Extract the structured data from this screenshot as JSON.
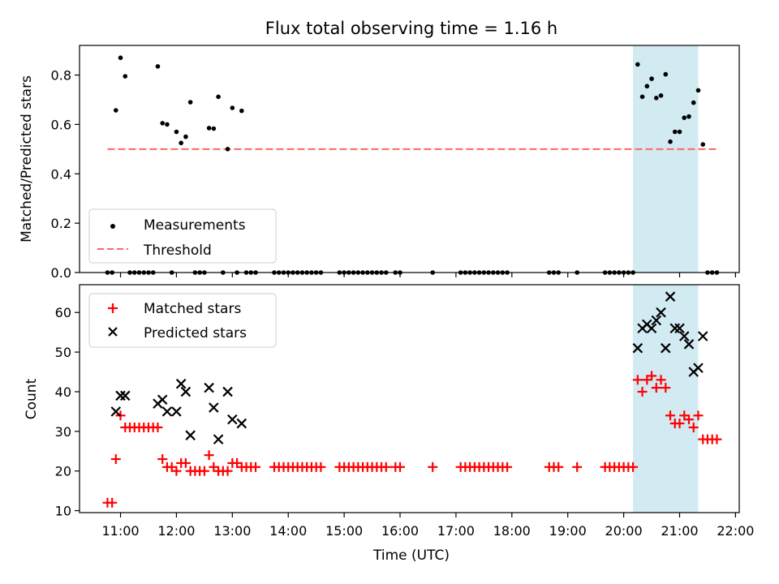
{
  "chart_data": {
    "type": "scatter",
    "title": "Flux total observing time = 1.16 h",
    "xlabel": "Time (UTC)",
    "x_ticks": [
      "11:00",
      "12:00",
      "13:00",
      "14:00",
      "15:00",
      "16:00",
      "17:00",
      "18:00",
      "19:00",
      "20:00",
      "21:00",
      "22:00"
    ],
    "xlim": [
      "10:16",
      "22:04"
    ],
    "highlight_span": [
      "20:10",
      "21:20"
    ],
    "colors": {
      "highlight": "#add8e6",
      "threshold": "#ff6666",
      "matched": "#ff0000",
      "predicted": "#000000",
      "measurements": "#000000"
    },
    "panels": [
      {
        "ylabel": "Matched/Predicted stars",
        "ylim": [
          0,
          0.92
        ],
        "y_ticks": [
          0.0,
          0.2,
          0.4,
          0.6,
          0.8
        ],
        "y_tick_labels": [
          "0.0",
          "0.2",
          "0.4",
          "0.6",
          "0.8"
        ],
        "legend_position": "lower-left",
        "series": [
          {
            "name": "Measurements",
            "marker": "dot",
            "points": [
              [
                "10:46",
                0
              ],
              [
                "10:51",
                0
              ],
              [
                "10:55",
                0.657
              ],
              [
                "11:00",
                0.87
              ],
              [
                "11:05",
                0.795
              ],
              [
                "11:10",
                0
              ],
              [
                "11:15",
                0
              ],
              [
                "11:20",
                0
              ],
              [
                "11:25",
                0
              ],
              [
                "11:30",
                0
              ],
              [
                "11:35",
                0
              ],
              [
                "11:40",
                0.835
              ],
              [
                "11:45",
                0.605
              ],
              [
                "11:50",
                0.6
              ],
              [
                "11:55",
                0
              ],
              [
                "12:00",
                0.57
              ],
              [
                "12:05",
                0.525
              ],
              [
                "12:10",
                0.55
              ],
              [
                "12:15",
                0.69
              ],
              [
                "12:20",
                0
              ],
              [
                "12:25",
                0
              ],
              [
                "12:30",
                0
              ],
              [
                "12:35",
                0.585
              ],
              [
                "12:40",
                0.583
              ],
              [
                "12:45",
                0.712
              ],
              [
                "12:50",
                0
              ],
              [
                "12:55",
                0.5
              ],
              [
                "13:00",
                0.667
              ],
              [
                "13:05",
                0
              ],
              [
                "13:10",
                0.655
              ],
              [
                "13:15",
                0
              ],
              [
                "13:20",
                0
              ],
              [
                "13:25",
                0
              ],
              [
                "13:45",
                0
              ],
              [
                "13:50",
                0
              ],
              [
                "13:55",
                0
              ],
              [
                "14:00",
                0
              ],
              [
                "14:05",
                0
              ],
              [
                "14:10",
                0
              ],
              [
                "14:15",
                0
              ],
              [
                "14:20",
                0
              ],
              [
                "14:25",
                0
              ],
              [
                "14:30",
                0
              ],
              [
                "14:35",
                0
              ],
              [
                "14:55",
                0
              ],
              [
                "15:00",
                0
              ],
              [
                "15:05",
                0
              ],
              [
                "15:10",
                0
              ],
              [
                "15:15",
                0
              ],
              [
                "15:20",
                0
              ],
              [
                "15:25",
                0
              ],
              [
                "15:30",
                0
              ],
              [
                "15:35",
                0
              ],
              [
                "15:40",
                0
              ],
              [
                "15:45",
                0
              ],
              [
                "15:55",
                0
              ],
              [
                "16:00",
                0
              ],
              [
                "16:35",
                0
              ],
              [
                "17:05",
                0
              ],
              [
                "17:10",
                0
              ],
              [
                "17:15",
                0
              ],
              [
                "17:20",
                0
              ],
              [
                "17:25",
                0
              ],
              [
                "17:30",
                0
              ],
              [
                "17:35",
                0
              ],
              [
                "17:40",
                0
              ],
              [
                "17:45",
                0
              ],
              [
                "17:50",
                0
              ],
              [
                "17:55",
                0
              ],
              [
                "18:40",
                0
              ],
              [
                "18:45",
                0
              ],
              [
                "18:50",
                0
              ],
              [
                "19:10",
                0
              ],
              [
                "19:40",
                0
              ],
              [
                "19:45",
                0
              ],
              [
                "19:50",
                0
              ],
              [
                "19:55",
                0
              ],
              [
                "20:00",
                0
              ],
              [
                "20:05",
                0
              ],
              [
                "20:10",
                0
              ],
              [
                "20:15",
                0.843
              ],
              [
                "20:20",
                0.712
              ],
              [
                "20:25",
                0.755
              ],
              [
                "20:30",
                0.785
              ],
              [
                "20:35",
                0.707
              ],
              [
                "20:40",
                0.717
              ],
              [
                "20:45",
                0.803
              ],
              [
                "20:50",
                0.53
              ],
              [
                "20:55",
                0.57
              ],
              [
                "21:00",
                0.57
              ],
              [
                "21:05",
                0.627
              ],
              [
                "21:10",
                0.632
              ],
              [
                "21:15",
                0.688
              ],
              [
                "21:20",
                0.738
              ],
              [
                "21:25",
                0.519
              ],
              [
                "21:30",
                0
              ],
              [
                "21:35",
                0
              ],
              [
                "21:40",
                0
              ]
            ]
          },
          {
            "name": "Threshold",
            "marker": "dashed-line",
            "points": [
              [
                "10:46",
                0.5
              ],
              [
                "21:40",
                0.5
              ]
            ]
          }
        ]
      },
      {
        "ylabel": "Count",
        "ylim": [
          9.5,
          67
        ],
        "y_ticks": [
          10,
          20,
          30,
          40,
          50,
          60
        ],
        "y_tick_labels": [
          "10",
          "20",
          "30",
          "40",
          "50",
          "60"
        ],
        "legend_position": "upper-left",
        "series": [
          {
            "name": "Matched stars",
            "marker": "plus",
            "points": [
              [
                "10:46",
                12
              ],
              [
                "10:51",
                12
              ],
              [
                "10:55",
                23
              ],
              [
                "11:00",
                34
              ],
              [
                "11:05",
                31
              ],
              [
                "11:10",
                31
              ],
              [
                "11:15",
                31
              ],
              [
                "11:20",
                31
              ],
              [
                "11:25",
                31
              ],
              [
                "11:30",
                31
              ],
              [
                "11:35",
                31
              ],
              [
                "11:40",
                31
              ],
              [
                "11:45",
                23
              ],
              [
                "11:50",
                21
              ],
              [
                "11:55",
                21
              ],
              [
                "12:00",
                20
              ],
              [
                "12:05",
                22
              ],
              [
                "12:10",
                22
              ],
              [
                "12:15",
                20
              ],
              [
                "12:20",
                20
              ],
              [
                "12:25",
                20
              ],
              [
                "12:30",
                20
              ],
              [
                "12:35",
                24
              ],
              [
                "12:40",
                21
              ],
              [
                "12:45",
                20
              ],
              [
                "12:50",
                20
              ],
              [
                "12:55",
                20
              ],
              [
                "13:00",
                22
              ],
              [
                "13:05",
                22
              ],
              [
                "13:10",
                21
              ],
              [
                "13:15",
                21
              ],
              [
                "13:20",
                21
              ],
              [
                "13:25",
                21
              ],
              [
                "13:45",
                21
              ],
              [
                "13:50",
                21
              ],
              [
                "13:55",
                21
              ],
              [
                "14:00",
                21
              ],
              [
                "14:05",
                21
              ],
              [
                "14:10",
                21
              ],
              [
                "14:15",
                21
              ],
              [
                "14:20",
                21
              ],
              [
                "14:25",
                21
              ],
              [
                "14:30",
                21
              ],
              [
                "14:35",
                21
              ],
              [
                "14:55",
                21
              ],
              [
                "15:00",
                21
              ],
              [
                "15:05",
                21
              ],
              [
                "15:10",
                21
              ],
              [
                "15:15",
                21
              ],
              [
                "15:20",
                21
              ],
              [
                "15:25",
                21
              ],
              [
                "15:30",
                21
              ],
              [
                "15:35",
                21
              ],
              [
                "15:40",
                21
              ],
              [
                "15:45",
                21
              ],
              [
                "15:55",
                21
              ],
              [
                "16:00",
                21
              ],
              [
                "16:35",
                21
              ],
              [
                "17:05",
                21
              ],
              [
                "17:10",
                21
              ],
              [
                "17:15",
                21
              ],
              [
                "17:20",
                21
              ],
              [
                "17:25",
                21
              ],
              [
                "17:30",
                21
              ],
              [
                "17:35",
                21
              ],
              [
                "17:40",
                21
              ],
              [
                "17:45",
                21
              ],
              [
                "17:50",
                21
              ],
              [
                "17:55",
                21
              ],
              [
                "18:40",
                21
              ],
              [
                "18:45",
                21
              ],
              [
                "18:50",
                21
              ],
              [
                "19:10",
                21
              ],
              [
                "19:40",
                21
              ],
              [
                "19:45",
                21
              ],
              [
                "19:50",
                21
              ],
              [
                "19:55",
                21
              ],
              [
                "20:00",
                21
              ],
              [
                "20:05",
                21
              ],
              [
                "20:10",
                21
              ],
              [
                "20:15",
                43
              ],
              [
                "20:20",
                40
              ],
              [
                "20:25",
                43
              ],
              [
                "20:30",
                44
              ],
              [
                "20:35",
                41
              ],
              [
                "20:40",
                43
              ],
              [
                "20:45",
                41
              ],
              [
                "20:50",
                34
              ],
              [
                "20:55",
                32
              ],
              [
                "21:00",
                32
              ],
              [
                "21:05",
                34
              ],
              [
                "21:10",
                33
              ],
              [
                "21:15",
                31
              ],
              [
                "21:20",
                34
              ],
              [
                "21:25",
                28
              ],
              [
                "21:30",
                28
              ],
              [
                "21:35",
                28
              ],
              [
                "21:40",
                28
              ]
            ]
          },
          {
            "name": "Predicted stars",
            "marker": "x",
            "points": [
              [
                "10:55",
                35
              ],
              [
                "11:00",
                39
              ],
              [
                "11:05",
                39
              ],
              [
                "11:40",
                37
              ],
              [
                "11:45",
                38
              ],
              [
                "11:50",
                35
              ],
              [
                "12:00",
                35
              ],
              [
                "12:05",
                42
              ],
              [
                "12:10",
                40
              ],
              [
                "12:15",
                29
              ],
              [
                "12:35",
                41
              ],
              [
                "12:40",
                36
              ],
              [
                "12:45",
                28
              ],
              [
                "12:55",
                40
              ],
              [
                "13:00",
                33
              ],
              [
                "13:10",
                32
              ],
              [
                "20:15",
                51
              ],
              [
                "20:20",
                56
              ],
              [
                "20:25",
                57
              ],
              [
                "20:30",
                56
              ],
              [
                "20:35",
                58
              ],
              [
                "20:40",
                60
              ],
              [
                "20:45",
                51
              ],
              [
                "20:50",
                64
              ],
              [
                "20:55",
                56
              ],
              [
                "21:00",
                56
              ],
              [
                "21:05",
                54
              ],
              [
                "21:10",
                52
              ],
              [
                "21:15",
                45
              ],
              [
                "21:20",
                46
              ],
              [
                "21:25",
                54
              ]
            ]
          }
        ]
      }
    ]
  }
}
